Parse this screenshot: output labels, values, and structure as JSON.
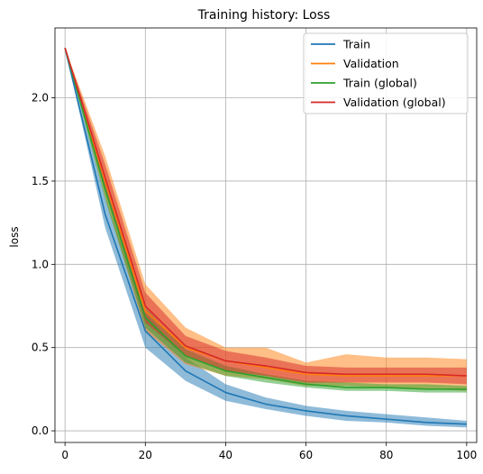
{
  "chart_data": {
    "type": "line",
    "title": "Training history: Loss",
    "xlabel": "",
    "ylabel": "loss",
    "xlim": [
      -2.5,
      102.5
    ],
    "ylim": [
      -0.07,
      2.42
    ],
    "xticks": [
      0,
      20,
      40,
      60,
      80,
      100
    ],
    "yticks": [
      0.0,
      0.5,
      1.0,
      1.5,
      2.0
    ],
    "xtick_labels": [
      "0",
      "20",
      "40",
      "60",
      "80",
      "100"
    ],
    "ytick_labels": [
      "0.0",
      "0.5",
      "1.0",
      "1.5",
      "2.0"
    ],
    "grid": true,
    "legend_position": "upper-right",
    "x": [
      0,
      10,
      20,
      30,
      40,
      50,
      60,
      70,
      80,
      90,
      100
    ],
    "series": [
      {
        "name": "Train",
        "color": "#1f77b4",
        "values": [
          2.3,
          1.3,
          0.6,
          0.36,
          0.23,
          0.16,
          0.12,
          0.09,
          0.07,
          0.05,
          0.04
        ],
        "lower": [
          2.3,
          1.22,
          0.5,
          0.3,
          0.18,
          0.13,
          0.09,
          0.06,
          0.05,
          0.03,
          0.02
        ],
        "upper": [
          2.3,
          1.4,
          0.7,
          0.44,
          0.28,
          0.2,
          0.15,
          0.12,
          0.1,
          0.08,
          0.06
        ]
      },
      {
        "name": "Validation",
        "color": "#ff7f0e",
        "values": [
          2.3,
          1.5,
          0.72,
          0.5,
          0.42,
          0.38,
          0.34,
          0.33,
          0.33,
          0.33,
          0.33
        ],
        "lower": [
          2.3,
          1.4,
          0.6,
          0.4,
          0.33,
          0.31,
          0.27,
          0.27,
          0.26,
          0.25,
          0.24
        ],
        "upper": [
          2.3,
          1.65,
          0.88,
          0.62,
          0.5,
          0.5,
          0.41,
          0.46,
          0.44,
          0.44,
          0.43
        ]
      },
      {
        "name": "Train (global)",
        "color": "#2ca02c",
        "values": [
          2.3,
          1.45,
          0.68,
          0.45,
          0.36,
          0.32,
          0.28,
          0.26,
          0.26,
          0.25,
          0.25
        ],
        "lower": [
          2.3,
          1.39,
          0.62,
          0.41,
          0.33,
          0.29,
          0.26,
          0.24,
          0.24,
          0.23,
          0.23
        ],
        "upper": [
          2.3,
          1.51,
          0.74,
          0.49,
          0.39,
          0.34,
          0.3,
          0.29,
          0.28,
          0.28,
          0.27
        ]
      },
      {
        "name": "Validation (global)",
        "color": "#d62728",
        "values": [
          2.3,
          1.52,
          0.75,
          0.51,
          0.42,
          0.39,
          0.35,
          0.34,
          0.34,
          0.34,
          0.33
        ],
        "lower": [
          2.3,
          1.45,
          0.65,
          0.45,
          0.36,
          0.33,
          0.29,
          0.29,
          0.29,
          0.29,
          0.28
        ],
        "upper": [
          2.3,
          1.6,
          0.83,
          0.57,
          0.48,
          0.44,
          0.39,
          0.38,
          0.38,
          0.38,
          0.38
        ]
      }
    ]
  }
}
